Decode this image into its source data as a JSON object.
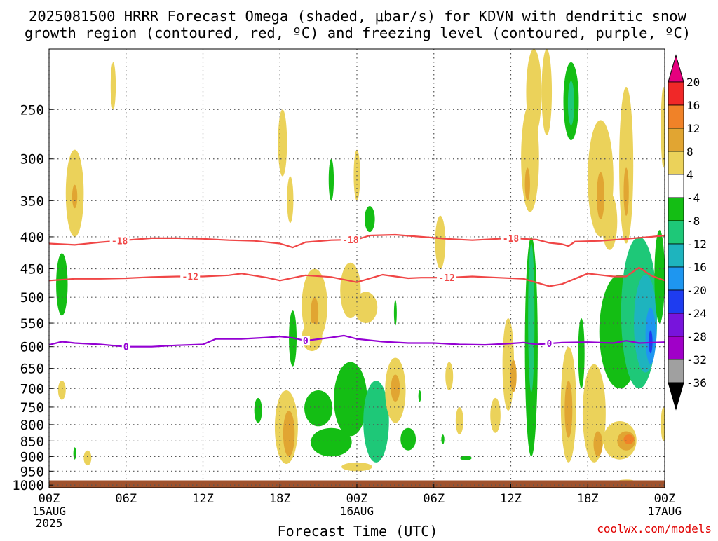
{
  "chart_data": {
    "type": "heatmap",
    "title_line1": "2025081500 HRRR Forecast Omega (shaded, μbar/s) for KDVN with dendritic snow",
    "title_line2": "growth region (contoured, red, ºC) and freezing level (contoured, purple, ºC)",
    "xlabel": "Forecast Time (UTC)",
    "credit": "coolwx.com/models",
    "x_ticks": [
      {
        "hour": 0,
        "label": "00Z",
        "sub": [
          "15AUG",
          "2025"
        ]
      },
      {
        "hour": 6,
        "label": "06Z",
        "sub": []
      },
      {
        "hour": 12,
        "label": "12Z",
        "sub": []
      },
      {
        "hour": 18,
        "label": "18Z",
        "sub": []
      },
      {
        "hour": 24,
        "label": "00Z",
        "sub": [
          "16AUG"
        ]
      },
      {
        "hour": 30,
        "label": "06Z",
        "sub": []
      },
      {
        "hour": 36,
        "label": "12Z",
        "sub": []
      },
      {
        "hour": 42,
        "label": "18Z",
        "sub": []
      },
      {
        "hour": 48,
        "label": "00Z",
        "sub": [
          "17AUG"
        ]
      }
    ],
    "x_range_hours": [
      0,
      48
    ],
    "y_ticks": [
      250,
      300,
      350,
      400,
      450,
      500,
      550,
      600,
      650,
      700,
      750,
      800,
      850,
      900,
      950,
      1000
    ],
    "y_range_hpa": [
      200,
      1010
    ],
    "y_scale": "log-pressure",
    "grid": true,
    "terrain_color": "#a0522d",
    "terrain_top_hpa": 983,
    "colorbar": {
      "labels": [
        "20",
        "16",
        "12",
        "8",
        "4",
        "-4",
        "-8",
        "-12",
        "-16",
        "-20",
        "-24",
        "-28",
        "-32",
        "-36"
      ],
      "colors": [
        "#f02828",
        "#f08228",
        "#e1a532",
        "#ebd25a",
        "#ffffff",
        "#14be14",
        "#1ec878",
        "#1eb4be",
        "#1e96f0",
        "#1e3cf0",
        "#7814dc",
        "#a000c8",
        "#a0a0a0"
      ],
      "top_arrow": "#e6007e",
      "bottom_arrow": "#000000"
    },
    "isotherms": [
      {
        "label": "-18",
        "color": "#f04646",
        "label_hours": [
          5.5,
          23.5,
          36.0
        ],
        "points": [
          [
            0,
            410
          ],
          [
            2,
            412
          ],
          [
            4,
            408
          ],
          [
            6,
            405
          ],
          [
            8,
            402
          ],
          [
            10,
            402
          ],
          [
            12,
            403
          ],
          [
            14,
            405
          ],
          [
            16,
            406
          ],
          [
            18,
            410
          ],
          [
            19,
            416
          ],
          [
            20,
            408
          ],
          [
            22,
            405
          ],
          [
            24,
            404
          ],
          [
            25,
            398
          ],
          [
            27,
            397
          ],
          [
            29,
            400
          ],
          [
            31,
            403
          ],
          [
            33,
            405
          ],
          [
            35,
            403
          ],
          [
            36,
            402
          ],
          [
            38,
            404
          ],
          [
            39,
            409
          ],
          [
            40,
            411
          ],
          [
            40.5,
            414
          ],
          [
            41,
            407
          ],
          [
            43,
            406
          ],
          [
            45,
            403
          ],
          [
            47,
            400
          ],
          [
            48,
            398
          ]
        ]
      },
      {
        "label": "-12",
        "color": "#f04646",
        "label_hours": [
          11.0,
          31.0
        ],
        "points": [
          [
            0,
            470
          ],
          [
            2,
            467
          ],
          [
            4,
            467
          ],
          [
            6,
            466
          ],
          [
            8,
            464
          ],
          [
            10,
            463
          ],
          [
            12,
            463
          ],
          [
            14,
            461
          ],
          [
            15,
            458
          ],
          [
            17,
            465
          ],
          [
            18,
            470
          ],
          [
            20,
            461
          ],
          [
            22,
            464
          ],
          [
            24,
            473
          ],
          [
            26,
            460
          ],
          [
            28,
            466
          ],
          [
            29,
            465
          ],
          [
            31,
            465
          ],
          [
            33,
            463
          ],
          [
            35,
            465
          ],
          [
            37,
            467
          ],
          [
            39,
            480
          ],
          [
            40,
            476
          ],
          [
            42,
            458
          ],
          [
            44,
            463
          ],
          [
            45,
            463
          ],
          [
            46,
            448
          ],
          [
            47,
            462
          ],
          [
            48,
            470
          ]
        ]
      },
      {
        "label": "0",
        "color": "#9400d3",
        "label_hours": [
          6.0,
          20.0,
          39.0
        ],
        "points": [
          [
            0,
            596
          ],
          [
            1,
            589
          ],
          [
            2,
            592
          ],
          [
            4,
            595
          ],
          [
            6,
            600
          ],
          [
            8,
            600
          ],
          [
            10,
            597
          ],
          [
            12,
            595
          ],
          [
            13,
            583
          ],
          [
            15,
            583
          ],
          [
            17,
            580
          ],
          [
            18,
            578
          ],
          [
            19,
            581
          ],
          [
            20,
            587
          ],
          [
            22,
            580
          ],
          [
            23,
            576
          ],
          [
            24,
            583
          ],
          [
            26,
            589
          ],
          [
            28,
            592
          ],
          [
            30,
            592
          ],
          [
            32,
            595
          ],
          [
            34,
            596
          ],
          [
            36,
            593
          ],
          [
            37,
            591
          ],
          [
            38,
            595
          ],
          [
            40,
            591
          ],
          [
            42,
            590
          ],
          [
            44,
            592
          ],
          [
            45,
            587
          ],
          [
            46,
            592
          ],
          [
            48,
            590
          ]
        ]
      }
    ],
    "omega_features": [
      {
        "t": 1.0,
        "p": 480,
        "rt": 0.45,
        "rp": 55,
        "value": -6
      },
      {
        "t": 2.0,
        "p": 345,
        "rt": 0.7,
        "rp": 55,
        "value": 5
      },
      {
        "t": 2.0,
        "p": 345,
        "rt": 0.2,
        "rp": 15,
        "value": 9
      },
      {
        "t": 5.0,
        "p": 230,
        "rt": 0.2,
        "rp": 20,
        "value": 5
      },
      {
        "t": 1.0,
        "p": 705,
        "rt": 0.3,
        "rp": 25,
        "value": 5
      },
      {
        "t": 2.0,
        "p": 890,
        "rt": 0.1,
        "rp": 20,
        "value": -5
      },
      {
        "t": 3.0,
        "p": 905,
        "rt": 0.3,
        "rp": 25,
        "value": 5
      },
      {
        "t": 18.2,
        "p": 285,
        "rt": 0.35,
        "rp": 35,
        "value": 5
      },
      {
        "t": 18.8,
        "p": 350,
        "rt": 0.25,
        "rp": 30,
        "value": 5
      },
      {
        "t": 22.0,
        "p": 325,
        "rt": 0.2,
        "rp": 25,
        "value": -6
      },
      {
        "t": 24.0,
        "p": 320,
        "rt": 0.25,
        "rp": 30,
        "value": 5
      },
      {
        "t": 25.0,
        "p": 375,
        "rt": 0.4,
        "rp": 18,
        "value": -6
      },
      {
        "t": 20.7,
        "p": 520,
        "rt": 1.0,
        "rp": 70,
        "value": 6
      },
      {
        "t": 20.7,
        "p": 530,
        "rt": 0.3,
        "rp": 30,
        "value": 10
      },
      {
        "t": 19.0,
        "p": 585,
        "rt": 0.3,
        "rp": 60,
        "value": -6
      },
      {
        "t": 20.5,
        "p": 580,
        "rt": 0.8,
        "rp": 30,
        "value": 5
      },
      {
        "t": 23.5,
        "p": 490,
        "rt": 0.8,
        "rp": 50,
        "value": 5
      },
      {
        "t": 24.7,
        "p": 520,
        "rt": 0.9,
        "rp": 30,
        "value": 5
      },
      {
        "t": 27.0,
        "p": 530,
        "rt": 0.1,
        "rp": 25,
        "value": -6
      },
      {
        "t": 23.5,
        "p": 735,
        "rt": 1.3,
        "rp": 100,
        "value": -6
      },
      {
        "t": 21.0,
        "p": 755,
        "rt": 1.1,
        "rp": 50,
        "value": -6
      },
      {
        "t": 22.0,
        "p": 855,
        "rt": 1.6,
        "rp": 45,
        "value": -6
      },
      {
        "t": 25.5,
        "p": 800,
        "rt": 1.0,
        "rp": 120,
        "value": -8
      },
      {
        "t": 25.5,
        "p": 805,
        "rt": 0.5,
        "rp": 50,
        "value": -10
      },
      {
        "t": 27.0,
        "p": 710,
        "rt": 0.8,
        "rp": 85,
        "value": 5
      },
      {
        "t": 27.0,
        "p": 700,
        "rt": 0.35,
        "rp": 35,
        "value": 9
      },
      {
        "t": 28.0,
        "p": 845,
        "rt": 0.6,
        "rp": 35,
        "value": -6
      },
      {
        "t": 28.9,
        "p": 720,
        "rt": 0.1,
        "rp": 15,
        "value": -6
      },
      {
        "t": 30.5,
        "p": 410,
        "rt": 0.4,
        "rp": 40,
        "value": 5
      },
      {
        "t": 31.2,
        "p": 670,
        "rt": 0.3,
        "rp": 35,
        "value": 5
      },
      {
        "t": 32.0,
        "p": 790,
        "rt": 0.3,
        "rp": 40,
        "value": 5
      },
      {
        "t": 30.7,
        "p": 845,
        "rt": 0.12,
        "rp": 15,
        "value": -6
      },
      {
        "t": 32.5,
        "p": 905,
        "rt": 0.45,
        "rp": 8,
        "value": -6
      },
      {
        "t": 18.5,
        "p": 815,
        "rt": 0.9,
        "rp": 110,
        "value": 5
      },
      {
        "t": 18.7,
        "p": 830,
        "rt": 0.45,
        "rp": 70,
        "value": 9
      },
      {
        "t": 16.3,
        "p": 760,
        "rt": 0.3,
        "rp": 35,
        "value": -6
      },
      {
        "t": 34.8,
        "p": 775,
        "rt": 0.4,
        "rp": 50,
        "value": 5
      },
      {
        "t": 35.8,
        "p": 650,
        "rt": 0.45,
        "rp": 110,
        "value": 5
      },
      {
        "t": 36.2,
        "p": 670,
        "rt": 0.25,
        "rp": 40,
        "value": 9
      },
      {
        "t": 37.6,
        "p": 650,
        "rt": 0.5,
        "rp": 250,
        "value": -7
      },
      {
        "t": 37.6,
        "p": 560,
        "rt": 0.25,
        "rp": 150,
        "value": -11
      },
      {
        "t": 37.5,
        "p": 305,
        "rt": 0.7,
        "rp": 60,
        "value": 5
      },
      {
        "t": 37.8,
        "p": 235,
        "rt": 0.6,
        "rp": 40,
        "value": 5
      },
      {
        "t": 37.3,
        "p": 330,
        "rt": 0.2,
        "rp": 20,
        "value": 9
      },
      {
        "t": 38.8,
        "p": 235,
        "rt": 0.4,
        "rp": 40,
        "value": 5
      },
      {
        "t": 40.7,
        "p": 245,
        "rt": 0.6,
        "rp": 35,
        "value": -6
      },
      {
        "t": 40.7,
        "p": 245,
        "rt": 0.25,
        "rp": 20,
        "value": -10
      },
      {
        "t": 40.5,
        "p": 760,
        "rt": 0.6,
        "rp": 160,
        "value": 5
      },
      {
        "t": 40.5,
        "p": 760,
        "rt": 0.3,
        "rp": 80,
        "value": 9
      },
      {
        "t": 41.5,
        "p": 620,
        "rt": 0.25,
        "rp": 80,
        "value": -6
      },
      {
        "t": 43.0,
        "p": 330,
        "rt": 1.0,
        "rp": 70,
        "value": 5
      },
      {
        "t": 43.7,
        "p": 380,
        "rt": 0.6,
        "rp": 40,
        "value": 5
      },
      {
        "t": 43.0,
        "p": 345,
        "rt": 0.3,
        "rp": 30,
        "value": 9
      },
      {
        "t": 45.0,
        "p": 320,
        "rt": 0.55,
        "rp": 90,
        "value": 5
      },
      {
        "t": 45.0,
        "p": 340,
        "rt": 0.2,
        "rp": 30,
        "value": 9
      },
      {
        "t": 42.5,
        "p": 780,
        "rt": 0.9,
        "rp": 140,
        "value": 5
      },
      {
        "t": 42.8,
        "p": 860,
        "rt": 0.35,
        "rp": 40,
        "value": 9
      },
      {
        "t": 44.5,
        "p": 850,
        "rt": 1.3,
        "rp": 60,
        "value": 5
      },
      {
        "t": 45.0,
        "p": 850,
        "rt": 0.7,
        "rp": 30,
        "value": 9
      },
      {
        "t": 45.2,
        "p": 845,
        "rt": 0.4,
        "rp": 15,
        "value": 13
      },
      {
        "t": 44.5,
        "p": 580,
        "rt": 1.6,
        "rp": 120,
        "value": -6
      },
      {
        "t": 46.0,
        "p": 550,
        "rt": 1.4,
        "rp": 150,
        "value": -9
      },
      {
        "t": 46.5,
        "p": 560,
        "rt": 0.9,
        "rp": 100,
        "value": -13
      },
      {
        "t": 46.9,
        "p": 580,
        "rt": 0.4,
        "rp": 60,
        "value": -17
      },
      {
        "t": 46.9,
        "p": 590,
        "rt": 0.15,
        "rp": 25,
        "value": -21
      },
      {
        "t": 47.6,
        "p": 470,
        "rt": 0.4,
        "rp": 80,
        "value": -6
      },
      {
        "t": 47.9,
        "p": 800,
        "rt": 0.2,
        "rp": 50,
        "value": 5
      },
      {
        "t": 47.9,
        "p": 270,
        "rt": 0.2,
        "rp": 40,
        "value": 5
      },
      {
        "t": 24.0,
        "p": 935,
        "rt": 1.2,
        "rp": 15,
        "value": 5
      },
      {
        "t": 45.0,
        "p": 985,
        "rt": 0.6,
        "rp": 4,
        "value": 5
      }
    ]
  }
}
